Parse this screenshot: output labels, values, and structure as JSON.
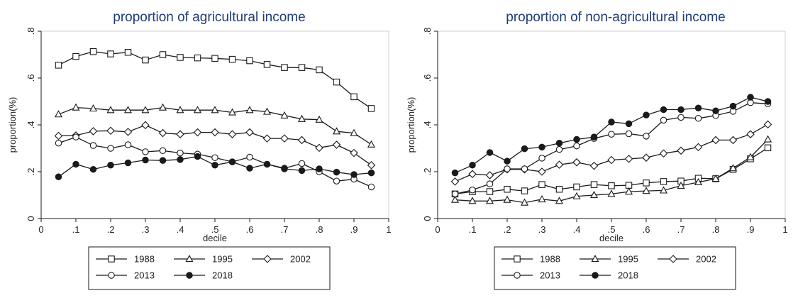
{
  "chart_data": [
    {
      "type": "line",
      "title": "proportion of agricultural income",
      "xlabel": "decile",
      "ylabel": "proportion(%)",
      "xlim": [
        0,
        1
      ],
      "ylim": [
        0,
        0.8
      ],
      "xticks": [
        "0",
        ".1",
        ".2",
        ".3",
        ".4",
        ".5",
        ".6",
        ".7",
        ".8",
        ".9",
        "1"
      ],
      "yticks": [
        "0",
        ".2",
        ".4",
        ".6",
        ".8"
      ],
      "grid": false,
      "legend_position": "bottom",
      "x": [
        0.05,
        0.1,
        0.15,
        0.2,
        0.25,
        0.3,
        0.35,
        0.4,
        0.45,
        0.5,
        0.55,
        0.6,
        0.65,
        0.7,
        0.75,
        0.8,
        0.85,
        0.9,
        0.95
      ],
      "series": [
        {
          "name": "1988",
          "marker": "square",
          "values": [
            0.655,
            0.692,
            0.713,
            0.703,
            0.71,
            0.677,
            0.7,
            0.688,
            0.686,
            0.684,
            0.68,
            0.674,
            0.658,
            0.645,
            0.645,
            0.635,
            0.583,
            0.52,
            0.47
          ]
        },
        {
          "name": "1995",
          "marker": "triangle",
          "values": [
            0.445,
            0.474,
            0.47,
            0.463,
            0.463,
            0.463,
            0.474,
            0.463,
            0.463,
            0.463,
            0.453,
            0.463,
            0.456,
            0.44,
            0.425,
            0.422,
            0.372,
            0.365,
            0.316
          ]
        },
        {
          "name": "2002",
          "marker": "diamond",
          "values": [
            0.353,
            0.355,
            0.373,
            0.375,
            0.37,
            0.399,
            0.365,
            0.36,
            0.368,
            0.368,
            0.36,
            0.368,
            0.342,
            0.342,
            0.335,
            0.302,
            0.315,
            0.28,
            0.228
          ]
        },
        {
          "name": "2013",
          "marker": "circle-open",
          "values": [
            0.322,
            0.348,
            0.312,
            0.3,
            0.315,
            0.285,
            0.29,
            0.28,
            0.275,
            0.26,
            0.242,
            0.262,
            0.232,
            0.215,
            0.235,
            0.2,
            0.16,
            0.168,
            0.135
          ]
        },
        {
          "name": "2018",
          "marker": "circle-filled",
          "values": [
            0.178,
            0.232,
            0.21,
            0.228,
            0.238,
            0.25,
            0.248,
            0.252,
            0.265,
            0.228,
            0.242,
            0.215,
            0.232,
            0.212,
            0.205,
            0.212,
            0.198,
            0.188,
            0.195
          ]
        }
      ]
    },
    {
      "type": "line",
      "title": "proportion of non-agricultural income",
      "xlabel": "decile",
      "ylabel": "proportion(%)",
      "xlim": [
        0,
        1
      ],
      "ylim": [
        0,
        0.8
      ],
      "xticks": [
        "0",
        ".1",
        ".2",
        ".3",
        ".4",
        ".5",
        ".6",
        ".7",
        ".8",
        ".9",
        "1"
      ],
      "yticks": [
        "0",
        ".2",
        ".4",
        ".6",
        ".8"
      ],
      "grid": false,
      "legend_position": "bottom",
      "x": [
        0.05,
        0.1,
        0.15,
        0.2,
        0.25,
        0.3,
        0.35,
        0.4,
        0.45,
        0.5,
        0.55,
        0.6,
        0.65,
        0.7,
        0.75,
        0.8,
        0.85,
        0.9,
        0.95
      ],
      "series": [
        {
          "name": "1988",
          "marker": "square",
          "values": [
            0.105,
            0.115,
            0.115,
            0.125,
            0.118,
            0.145,
            0.125,
            0.135,
            0.145,
            0.14,
            0.142,
            0.152,
            0.158,
            0.16,
            0.172,
            0.17,
            0.21,
            0.255,
            0.302
          ]
        },
        {
          "name": "1995",
          "marker": "triangle",
          "values": [
            0.08,
            0.075,
            0.075,
            0.08,
            0.068,
            0.082,
            0.075,
            0.095,
            0.1,
            0.105,
            0.115,
            0.118,
            0.12,
            0.14,
            0.155,
            0.17,
            0.215,
            0.262,
            0.338
          ]
        },
        {
          "name": "2002",
          "marker": "diamond",
          "values": [
            0.158,
            0.19,
            0.185,
            0.21,
            0.21,
            0.2,
            0.23,
            0.24,
            0.225,
            0.25,
            0.255,
            0.26,
            0.278,
            0.29,
            0.305,
            0.335,
            0.335,
            0.36,
            0.402
          ]
        },
        {
          "name": "2013",
          "marker": "circle-open",
          "values": [
            0.105,
            0.122,
            0.148,
            0.212,
            0.212,
            0.258,
            0.295,
            0.31,
            0.342,
            0.36,
            0.362,
            0.352,
            0.42,
            0.432,
            0.428,
            0.44,
            0.458,
            0.495,
            0.49
          ]
        },
        {
          "name": "2018",
          "marker": "circle-filled",
          "values": [
            0.195,
            0.228,
            0.282,
            0.245,
            0.298,
            0.305,
            0.322,
            0.338,
            0.348,
            0.412,
            0.405,
            0.442,
            0.465,
            0.465,
            0.472,
            0.46,
            0.48,
            0.518,
            0.5
          ]
        }
      ]
    }
  ],
  "legend_items": [
    "1988",
    "1995",
    "2002",
    "2013",
    "2018"
  ],
  "colors": {
    "line": "#1a1a1a",
    "frame": "#1a1a1a",
    "title": "#1f3b73"
  }
}
